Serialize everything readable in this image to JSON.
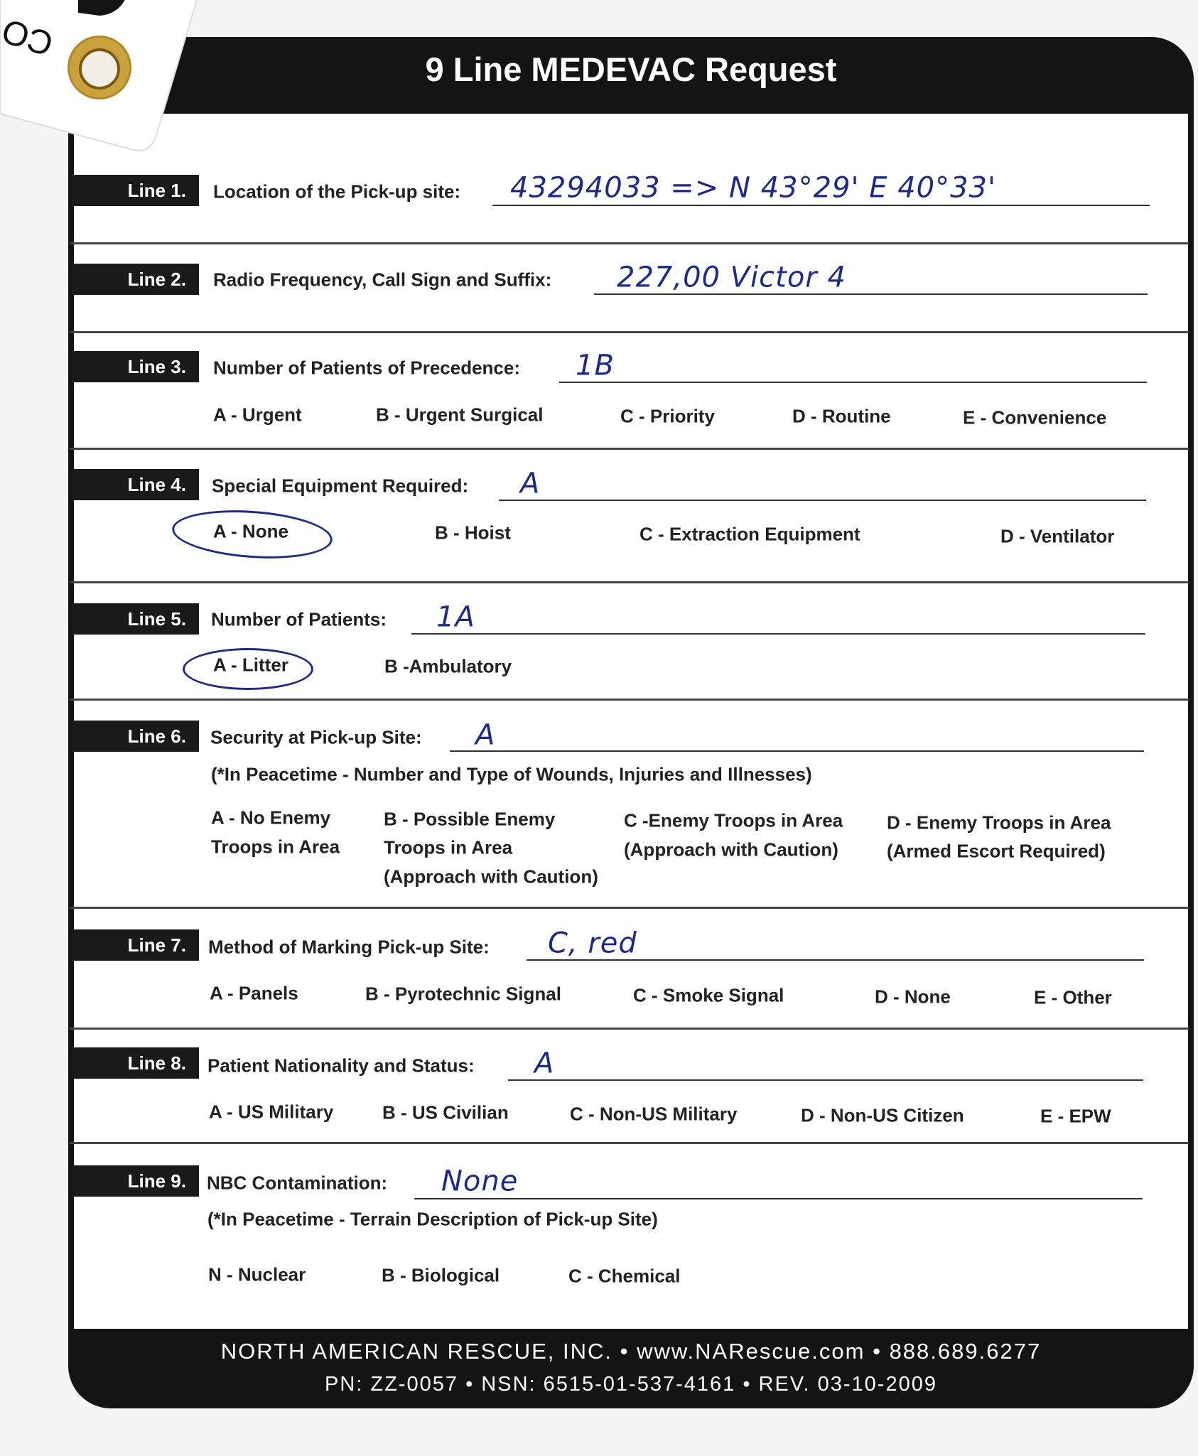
{
  "title": "9 Line MEDEVAC Request",
  "tag": {
    "text": "CO"
  },
  "lines": [
    {
      "label": "Line 1.",
      "prompt": "Location of the Pick-up site:",
      "handwritten": "43294033 => N 43°29' E 40°33'"
    },
    {
      "label": "Line 2.",
      "prompt": "Radio Frequency, Call Sign and Suffix:",
      "handwritten": "227,00 Victor 4"
    },
    {
      "label": "Line 3.",
      "prompt": "Number of Patients of Precedence:",
      "handwritten": "1B",
      "options": [
        "A - Urgent",
        "B - Urgent Surgical",
        "C - Priority",
        "D - Routine",
        "E - Convenience"
      ]
    },
    {
      "label": "Line 4.",
      "prompt": "Special Equipment Required:",
      "handwritten": "A",
      "options": [
        "A - None",
        "B - Hoist",
        "C - Extraction Equipment",
        "D - Ventilator"
      ],
      "circled": "A - None"
    },
    {
      "label": "Line 5.",
      "prompt": "Number of Patients:",
      "handwritten": "1A",
      "options": [
        "A - Litter",
        "B -Ambulatory"
      ],
      "circled": "A - Litter"
    },
    {
      "label": "Line 6.",
      "prompt": "Security at Pick-up Site:",
      "handwritten": "A",
      "note": "(*In Peacetime - Number and Type of Wounds, Injuries and Illnesses)",
      "options": [
        [
          "A - No Enemy",
          "Troops in Area"
        ],
        [
          "B - Possible Enemy",
          "Troops in Area",
          "(Approach with Caution)"
        ],
        [
          "C -Enemy Troops in Area",
          "(Approach with Caution)"
        ],
        [
          "D - Enemy Troops in Area",
          "(Armed Escort Required)"
        ]
      ]
    },
    {
      "label": "Line 7.",
      "prompt": "Method of Marking Pick-up Site:",
      "handwritten": "C, red",
      "options": [
        "A - Panels",
        "B - Pyrotechnic Signal",
        "C - Smoke Signal",
        "D - None",
        "E - Other"
      ]
    },
    {
      "label": "Line 8.",
      "prompt": "Patient Nationality and Status:",
      "handwritten": "A",
      "options": [
        "A - US Military",
        "B - US Civilian",
        "C - Non-US Military",
        "D - Non-US Citizen",
        "E - EPW"
      ]
    },
    {
      "label": "Line 9.",
      "prompt": "NBC Contamination:",
      "handwritten": "None",
      "note": "(*In Peacetime - Terrain Description of Pick-up Site)",
      "options": [
        "N - Nuclear",
        "B - Biological",
        "C - Chemical"
      ]
    }
  ],
  "footer": {
    "line1": "NORTH AMERICAN RESCUE, INC. • www.NARescue.com • 888.689.6277",
    "line2": "PN: ZZ-0057  •  NSN: 6515-01-537-4161  •  REV. 03-10-2009"
  },
  "colors": {
    "ink": "#1d2a8c",
    "card": "#141414",
    "grommet": "#b08a2a"
  }
}
